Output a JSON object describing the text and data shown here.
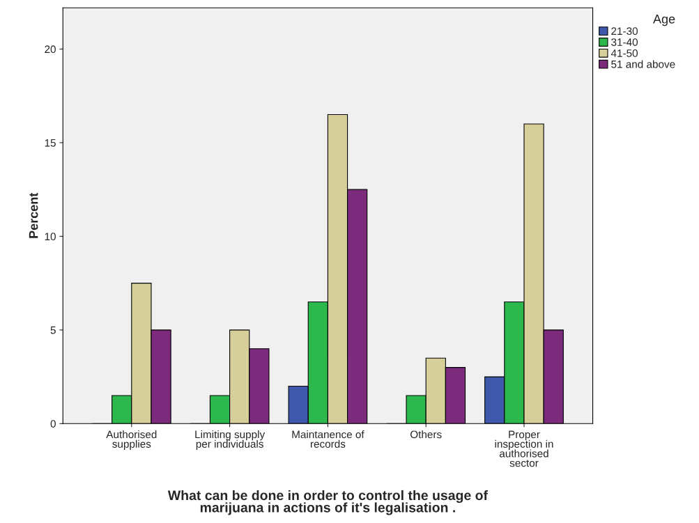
{
  "chart_data": {
    "type": "bar",
    "xlabel": "What can be done in order to control the usage of\nmarijuana in actions of it's legalisation .",
    "ylabel": "Percent",
    "legend_title": "Age",
    "categories": [
      "Authorised\nsupplies",
      "Limiting supply\nper individuals",
      "Maintanence of\nrecords",
      "Others",
      "Proper\ninspection in\nauthorised\nsector"
    ],
    "series": [
      {
        "name": "21-30",
        "color": "#3e58ac",
        "values": [
          0,
          0,
          2,
          0,
          2.5
        ]
      },
      {
        "name": "31-40",
        "color": "#2cb84c",
        "values": [
          1.5,
          1.5,
          6.5,
          1.5,
          6.5
        ]
      },
      {
        "name": "41-50",
        "color": "#d6cf9a",
        "values": [
          7.5,
          5,
          16.5,
          3.5,
          16
        ]
      },
      {
        "name": "51 and above",
        "color": "#7b2a7c",
        "values": [
          5,
          4,
          12.5,
          3,
          5
        ]
      }
    ],
    "ylim": [
      0,
      22.2
    ],
    "yticks": [
      0,
      5,
      10,
      15,
      20
    ],
    "grid": false,
    "legend": "top right"
  }
}
